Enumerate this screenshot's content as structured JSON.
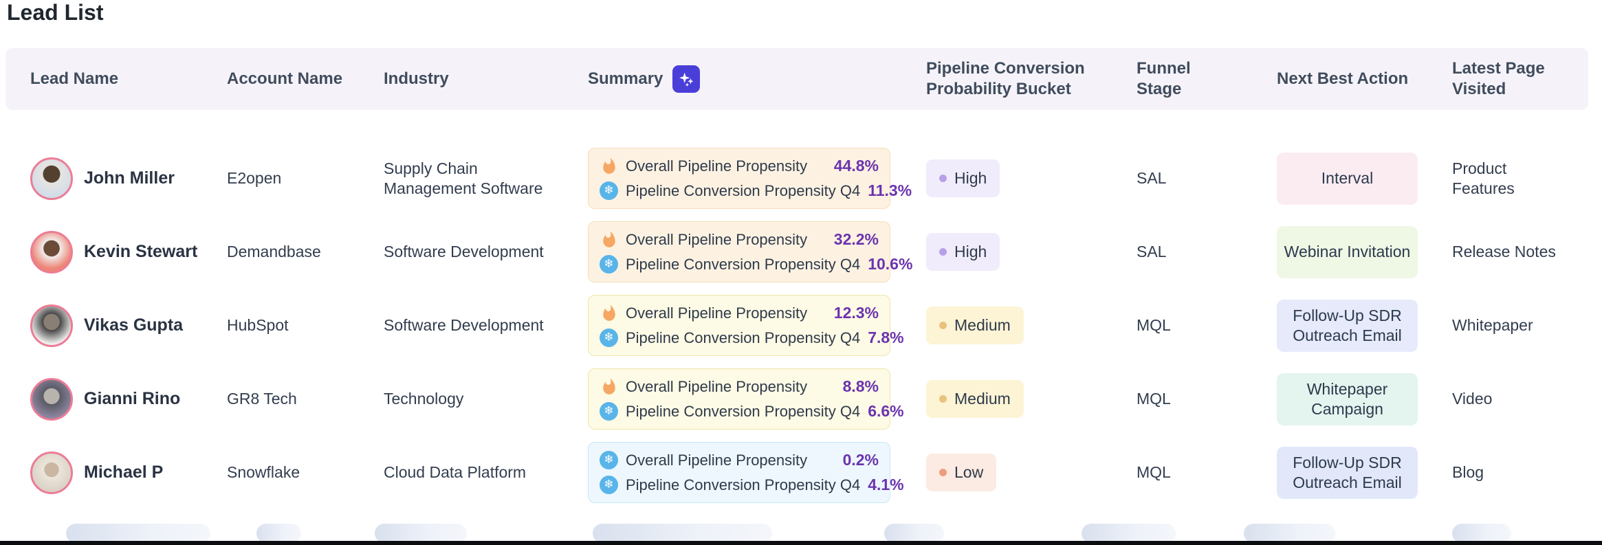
{
  "page": {
    "title": "Lead List"
  },
  "table": {
    "columns": [
      "Lead Name",
      "Account Name",
      "Industry",
      "Summary",
      "Pipeline Conversion Probability Bucket",
      "Funnel Stage",
      "Next Best Action",
      "Latest Page Visited"
    ],
    "summary_header_icon": "sparkles-icon",
    "rows": [
      {
        "lead_name": "John Miller",
        "account_name": "E2open",
        "industry": "Supply Chain Management Software",
        "summary": {
          "variant": "warm",
          "metrics": [
            {
              "icon": "flame-icon",
              "label": "Overall Pipeline Propensity",
              "value": "44.8%"
            },
            {
              "icon": "snowflake-icon",
              "label": "Pipeline Conversion Propensity Q4",
              "value": "11.3%"
            }
          ]
        },
        "bucket": {
          "label": "High",
          "variant": "high"
        },
        "funnel_stage": "SAL",
        "next_best_action": {
          "label": "Interval",
          "variant": "pink"
        },
        "latest_page_visited": "Product Features"
      },
      {
        "lead_name": "Kevin Stewart",
        "account_name": "Demandbase",
        "industry": "Software Development",
        "summary": {
          "variant": "warm",
          "metrics": [
            {
              "icon": "flame-icon",
              "label": "Overall Pipeline Propensity",
              "value": "32.2%"
            },
            {
              "icon": "snowflake-icon",
              "label": "Pipeline Conversion Propensity Q4",
              "value": "10.6%"
            }
          ]
        },
        "bucket": {
          "label": "High",
          "variant": "high"
        },
        "funnel_stage": "SAL",
        "next_best_action": {
          "label": "Webinar Invitation",
          "variant": "green"
        },
        "latest_page_visited": "Release Notes"
      },
      {
        "lead_name": "Vikas Gupta",
        "account_name": "HubSpot",
        "industry": "Software Development",
        "summary": {
          "variant": "yellow",
          "metrics": [
            {
              "icon": "flame-icon",
              "label": "Overall Pipeline Propensity",
              "value": "12.3%"
            },
            {
              "icon": "snowflake-icon",
              "label": "Pipeline Conversion Propensity Q4",
              "value": "7.8%"
            }
          ]
        },
        "bucket": {
          "label": "Medium",
          "variant": "medium"
        },
        "funnel_stage": "MQL",
        "next_best_action": {
          "label": "Follow-Up SDR Outreach Email",
          "variant": "indigo"
        },
        "latest_page_visited": "Whitepaper"
      },
      {
        "lead_name": "Gianni Rino",
        "account_name": "GR8 Tech",
        "industry": "Technology",
        "summary": {
          "variant": "yellow",
          "metrics": [
            {
              "icon": "flame-icon",
              "label": "Overall Pipeline Propensity",
              "value": "8.8%"
            },
            {
              "icon": "snowflake-icon",
              "label": "Pipeline Conversion Propensity Q4",
              "value": "6.6%"
            }
          ]
        },
        "bucket": {
          "label": "Medium",
          "variant": "medium"
        },
        "funnel_stage": "MQL",
        "next_best_action": {
          "label": "Whitepaper Campaign",
          "variant": "mint"
        },
        "latest_page_visited": "Video"
      },
      {
        "lead_name": "Michael P",
        "account_name": "Snowflake",
        "industry": "Cloud Data Platform",
        "summary": {
          "variant": "blue",
          "metrics": [
            {
              "icon": "snowflake-icon",
              "label": "Overall Pipeline Propensity",
              "value": "0.2%"
            },
            {
              "icon": "snowflake-icon",
              "label": "Pipeline Conversion Propensity Q4",
              "value": "4.1%"
            }
          ]
        },
        "bucket": {
          "label": "Low",
          "variant": "low"
        },
        "funnel_stage": "MQL",
        "next_best_action": {
          "label": "Follow-Up SDR Outreach Email",
          "variant": "blue"
        },
        "latest_page_visited": "Blog"
      }
    ]
  },
  "colors": {
    "header_bg": "#f5f3f9",
    "sparkles_badge_bg": "#4a3ed9",
    "metric_value_purple": "#6b34ae",
    "flame_orange": "#f5a763",
    "snowflake_blue": "#58b4e9",
    "avatar_ring_pink": "#ec7c95",
    "summary_card_warm_bg": "#fdf2e2",
    "summary_card_yellow_bg": "#fdfae5",
    "summary_card_blue_bg": "#edf7fd",
    "bucket_high_bg": "#f1ecfc",
    "bucket_medium_bg": "#fcf4d5",
    "bucket_low_bg": "#fcebe2",
    "action_pink_bg": "#fbecf2",
    "action_green_bg": "#eff7e5",
    "action_indigo_bg": "#e6eafb",
    "action_mint_bg": "#e4f4ee",
    "action_blue_bg": "#e2e8fa"
  }
}
